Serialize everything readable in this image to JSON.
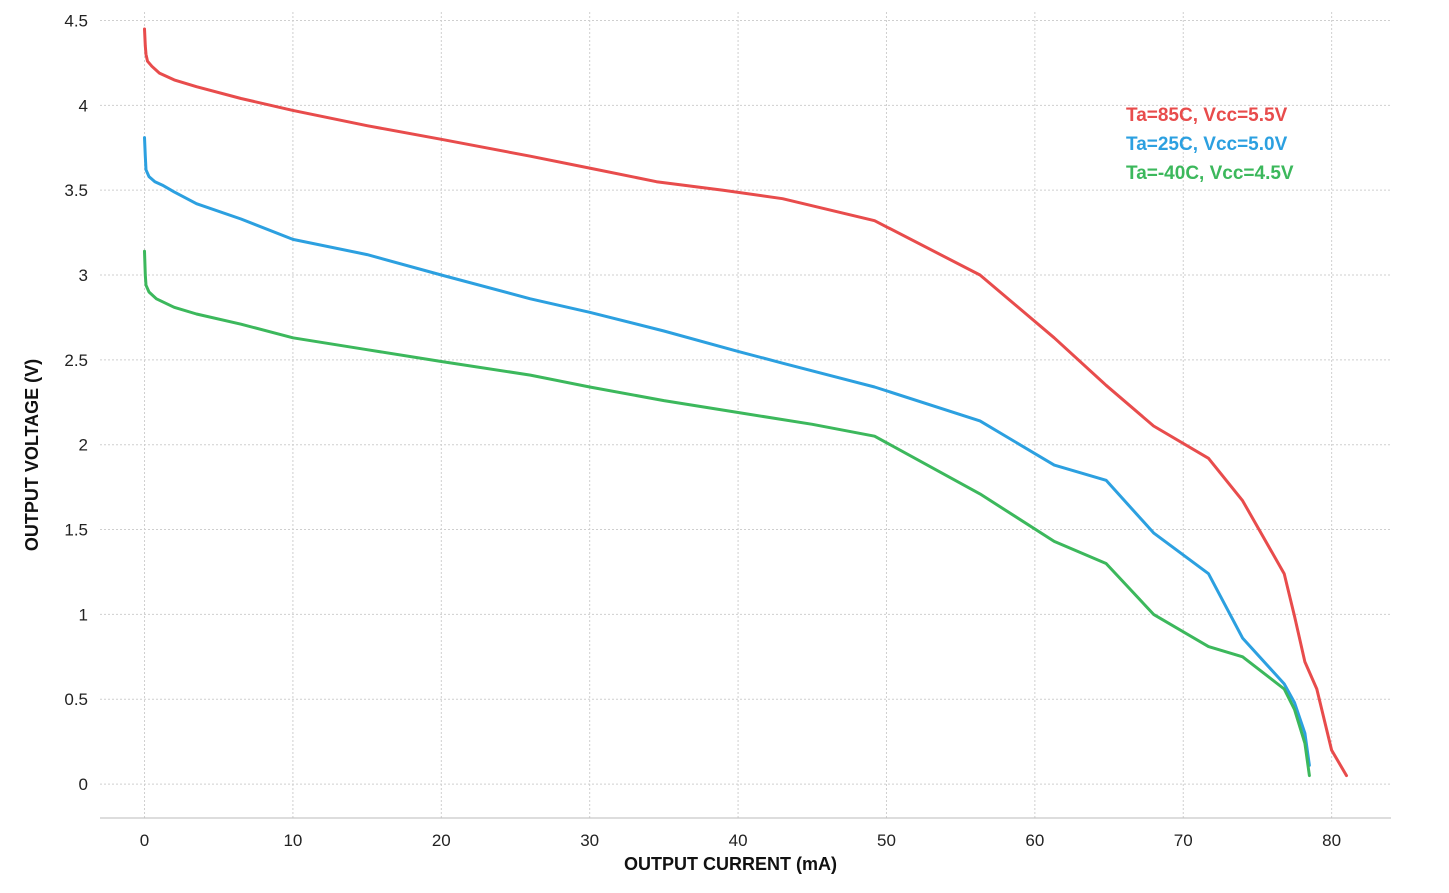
{
  "chart_data": {
    "type": "line",
    "title": "",
    "xlabel": "OUTPUT CURRENT (mA)",
    "ylabel": "OUTPUT VOLTAGE (V)",
    "xlim": [
      -3,
      84
    ],
    "ylim": [
      -0.2,
      4.55
    ],
    "xticks": [
      0,
      10,
      20,
      30,
      40,
      50,
      60,
      70,
      80
    ],
    "yticks": [
      0,
      0.5,
      1,
      1.5,
      2,
      2.5,
      3,
      3.5,
      4,
      4.5
    ],
    "xtick_labels": [
      "0",
      "10",
      "20",
      "30",
      "40",
      "50",
      "60",
      "70",
      "80"
    ],
    "ytick_labels": [
      "0",
      "0.5",
      "1",
      "1.5",
      "2",
      "2.5",
      "3",
      "3.5",
      "4",
      "4.5"
    ],
    "grid": true,
    "legend_position": "top-right",
    "series": [
      {
        "name": "Ta=85C, Vcc=5.5V",
        "color": "#e84c4c",
        "x": [
          0.0,
          0.05,
          0.1,
          0.2,
          0.5,
          1.0,
          2.0,
          3.5,
          6.5,
          10.0,
          15.0,
          20.0,
          26.0,
          30.0,
          34.5,
          39.0,
          43.0,
          49.2,
          56.3,
          61.3,
          64.8,
          68.0,
          71.7,
          74.0,
          76.8,
          77.5,
          78.2,
          79.0,
          80.0,
          81.0
        ],
        "y": [
          4.45,
          4.35,
          4.3,
          4.26,
          4.23,
          4.19,
          4.15,
          4.11,
          4.04,
          3.97,
          3.88,
          3.8,
          3.7,
          3.63,
          3.55,
          3.5,
          3.45,
          3.32,
          3.0,
          2.63,
          2.35,
          2.11,
          1.92,
          1.67,
          1.24,
          0.99,
          0.72,
          0.56,
          0.2,
          0.05
        ]
      },
      {
        "name": "Ta=25C, Vcc=5.0V",
        "color": "#2ca0e0",
        "x": [
          0.0,
          0.05,
          0.1,
          0.3,
          0.7,
          1.2,
          2.0,
          3.5,
          6.5,
          10.0,
          15.0,
          20.0,
          26.0,
          30.0,
          35.0,
          40.0,
          43.0,
          49.2,
          56.3,
          61.3,
          64.8,
          68.0,
          71.7,
          74.0,
          76.8,
          77.5,
          78.2,
          78.5
        ],
        "y": [
          3.81,
          3.7,
          3.62,
          3.58,
          3.55,
          3.53,
          3.49,
          3.42,
          3.33,
          3.21,
          3.12,
          3.0,
          2.86,
          2.78,
          2.67,
          2.55,
          2.48,
          2.34,
          2.14,
          1.88,
          1.79,
          1.48,
          1.24,
          0.86,
          0.59,
          0.48,
          0.3,
          0.11
        ]
      },
      {
        "name": "Ta=-40C, Vcc=4.5V",
        "color": "#3cb85c",
        "x": [
          0.0,
          0.05,
          0.1,
          0.3,
          0.8,
          2.0,
          3.5,
          6.5,
          10.0,
          15.0,
          20.0,
          26.0,
          30.0,
          35.0,
          40.0,
          45.0,
          49.2,
          56.3,
          61.3,
          64.8,
          68.0,
          71.7,
          74.0,
          76.8,
          77.5,
          78.2,
          78.5
        ],
        "y": [
          3.14,
          3.0,
          2.94,
          2.9,
          2.86,
          2.81,
          2.77,
          2.71,
          2.63,
          2.56,
          2.49,
          2.41,
          2.34,
          2.26,
          2.19,
          2.12,
          2.05,
          1.71,
          1.43,
          1.3,
          1.0,
          0.81,
          0.75,
          0.56,
          0.44,
          0.24,
          0.05
        ]
      }
    ]
  }
}
